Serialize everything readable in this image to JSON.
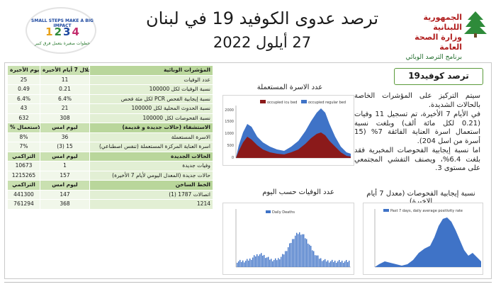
{
  "header": {
    "title": "ترصد عدوى الكوفيد 19 في لبنان",
    "date": "27 أيلول 2022",
    "ministry": {
      "line1": "الجمهورية اللبنانية",
      "line2": "وزارة الصحة العامة",
      "line3": "برنامج الترصد الوبائي"
    },
    "campaign": {
      "top": "SMALL STEPS MAKE A BIG IMPACT",
      "numbers": [
        "1",
        "2",
        "3",
        "4"
      ],
      "bottom": "خطوات صغيرة بتعمل فرق كبير"
    },
    "colors": {
      "ministry_red": "#b01c1c",
      "cedar_green": "#2e8b3a",
      "campaign_blue": "#1f4aa0"
    }
  },
  "summary": {
    "badge": "ترصد كوفيد19",
    "paragraphs": [
      "سيتم التركيز على المؤشرات الخاصة بالحالات الشديدة.",
      "في الأيام 7 الأخيرة، تم تسجيل 11 وفيات (0.21 لكل مائة ألف) وبلغت نسبة استعمال اسرة العناية الفائقة 7% (15 أسرة من اسل 204).",
      "اما نسبة إيجابية الفحوصات المخبرية فقد بلغت 6.4%، ويصنف التفشي المجتمعي على مستوى 3."
    ]
  },
  "charts": {
    "hospital_beds": {
      "title": "عدد الاسرة المستعملة",
      "legend": [
        "occupied icu bed",
        "occupied regular bed"
      ],
      "colors": [
        "#8b1a1a",
        "#3f73c7"
      ],
      "y_ticks": [
        "2000",
        "1500",
        "1000",
        "500",
        "0"
      ]
    },
    "deaths": {
      "title": "عدد الوفيات حسب اليوم",
      "legend": [
        "Daily Deaths"
      ],
      "color": "#3f73c7"
    },
    "positivity": {
      "title": "نسبة إيجابية الفحوصات (معدل 7 أيام الاخيرة)",
      "legend": [
        "Past 7 days, daily average positivity rate"
      ],
      "color": "#3f73c7"
    }
  },
  "table": {
    "header": {
      "label": "المؤشرات الوبائية",
      "c1": "خلال 7 أيام الأخيرة",
      "c2": "خلال 14 يوم الأخيرة"
    },
    "rows_a": [
      {
        "label": "عدد الوفيات",
        "v1": "11",
        "v2": "25"
      },
      {
        "label": "نسبة الوفيات لكل 100000",
        "v1": "0.21",
        "v2": "0.49"
      },
      {
        "label": "نسبة إيجابية الفحص PCR لكل مئة فحص",
        "v1": "6.4%",
        "v2": "6.4%"
      },
      {
        "label": "نسبة الحدوث المحلية لكل 100000",
        "v1": "21",
        "v2": "43"
      },
      {
        "label": "نسبة الفحوصات لكل 100000",
        "v1": "308",
        "v2": "632"
      }
    ],
    "header_b": {
      "label": "الاستشفاء (حالات جديدة و قديمة)",
      "c1": "ليوم امس",
      "c2": "% نسبة الاستعمال"
    },
    "rows_b": [
      {
        "label": "الاسرة المستعملة",
        "v1": "36",
        "v2": "8%"
      },
      {
        "label": "اسرة العناية المركزة المستعملة (تنفس اصطناعي)",
        "v1": "(3) 15",
        "v2": "7%"
      }
    ],
    "header_c": {
      "label": "الحالات الجديدة",
      "c1": "ليوم امس",
      "c2": "التراكمي"
    },
    "rows_c": [
      {
        "label": "وفيات جديدة",
        "v1": "1",
        "v2": "10673"
      },
      {
        "label": "حالات جديدة (المعدل اليومي لأيام 7 الأخيرة)",
        "v1": "157",
        "v2": "1215265"
      }
    ],
    "header_d": {
      "label": "الخط الساخن",
      "c1": "ليوم امس",
      "c2": "التراكمي"
    },
    "rows_d": [
      {
        "label": "اتصالات 1787 (1)",
        "v1": "147",
        "v2": "441300"
      },
      {
        "label": "1214",
        "v1": "368",
        "v2": "761294"
      }
    ],
    "colors": {
      "label_bg": "#e2efd4",
      "value_bg": "#f1f7ea",
      "header_bg": "#c9e0b0"
    }
  }
}
